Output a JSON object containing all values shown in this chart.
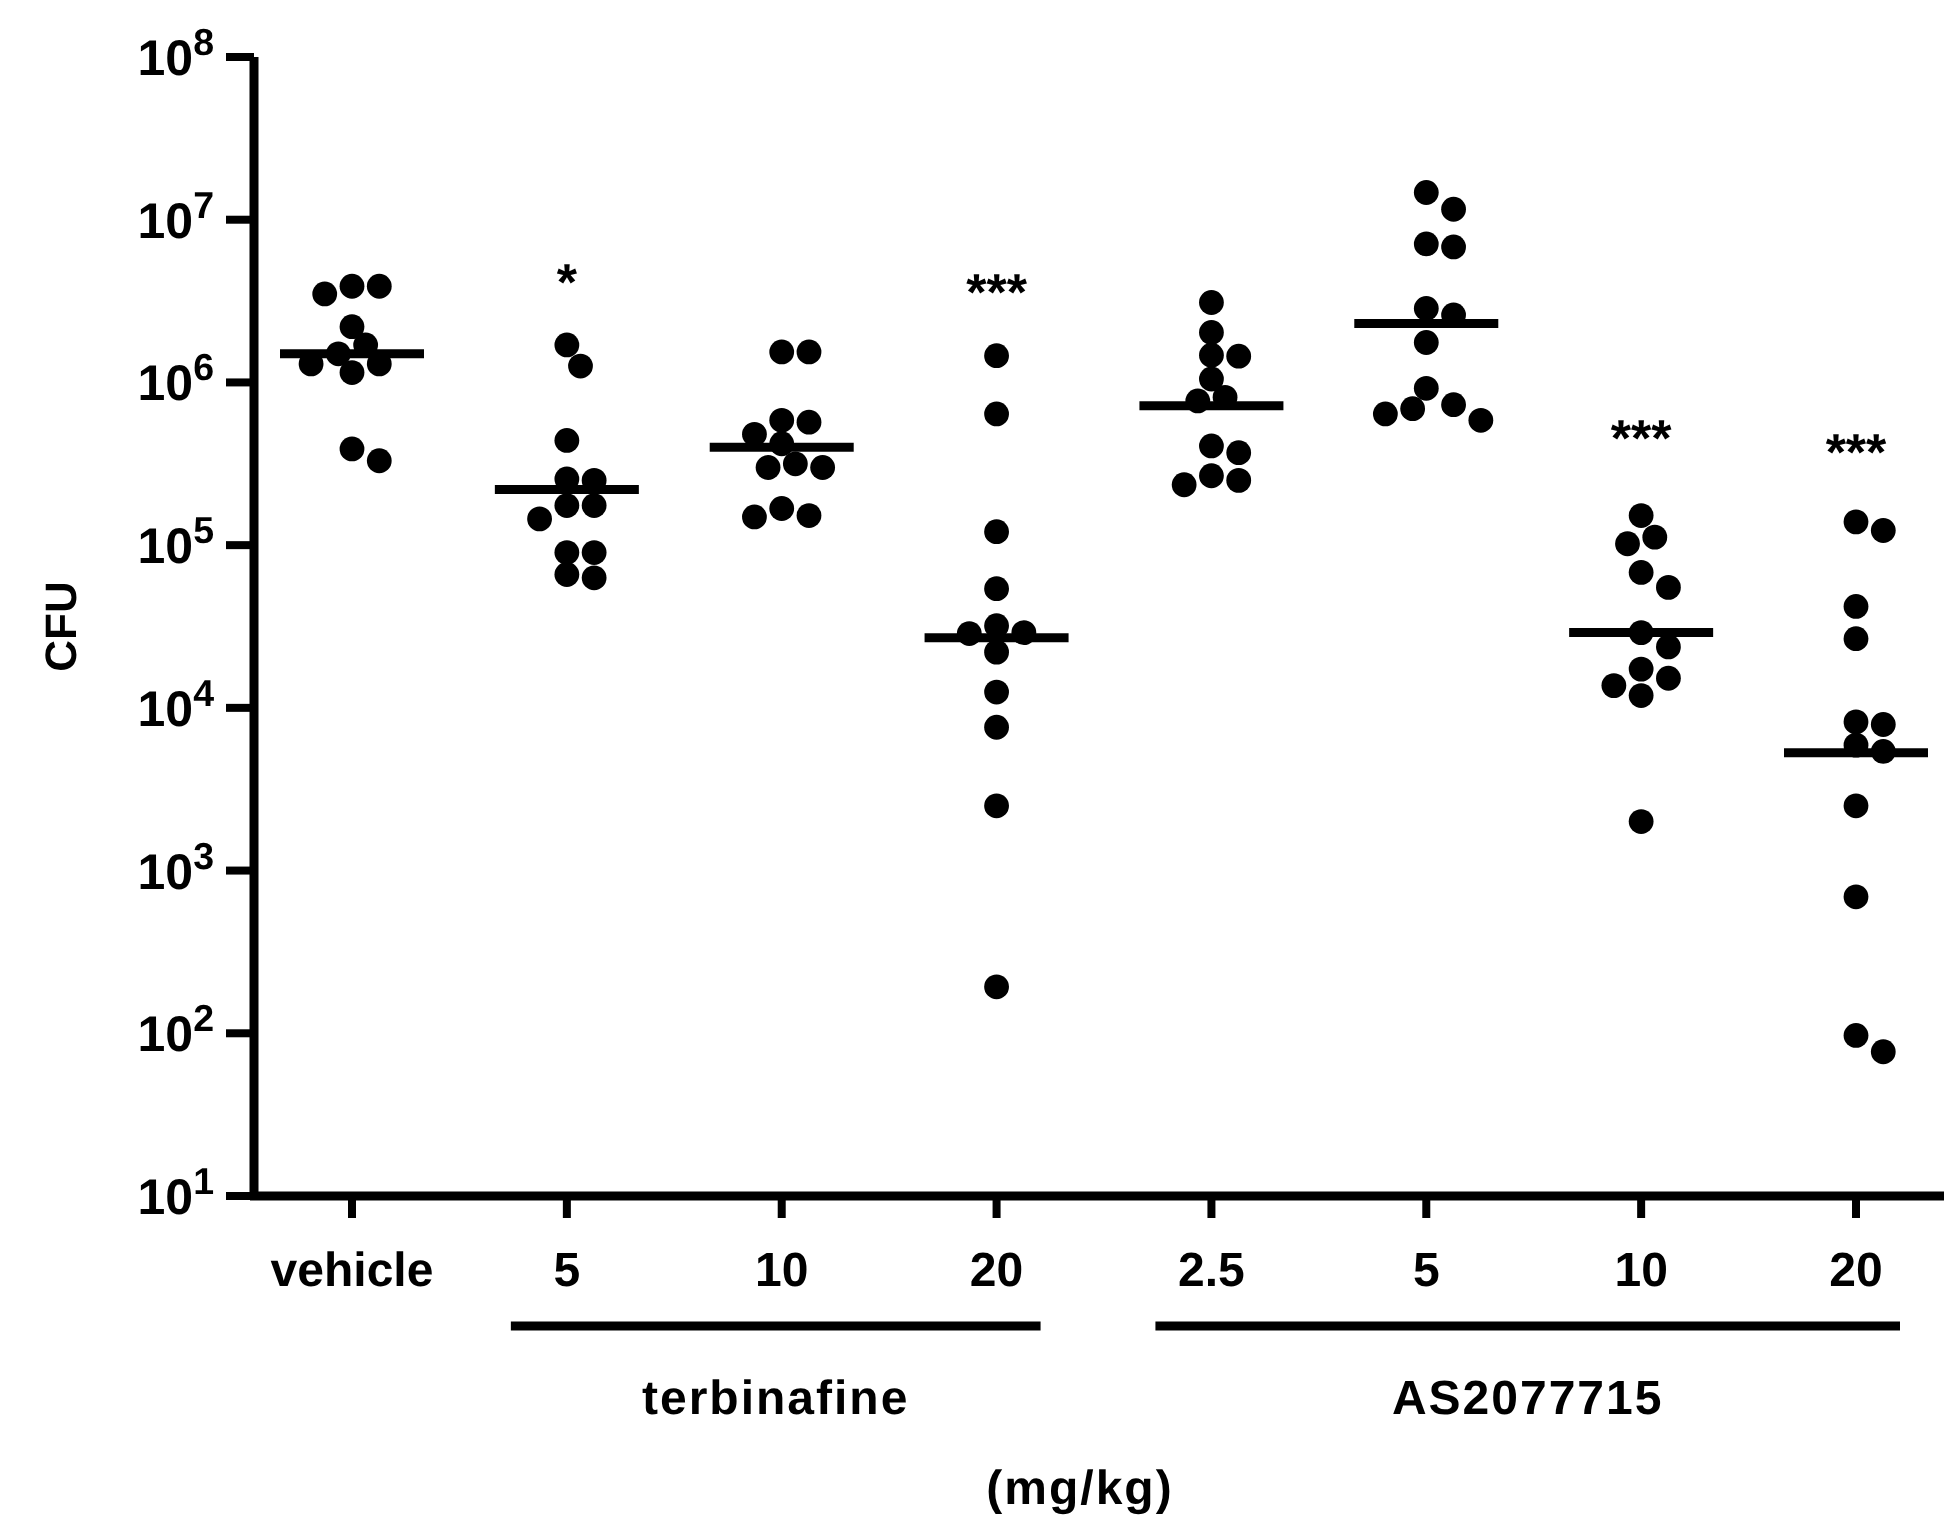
{
  "chart_data": {
    "type": "scatter",
    "ylabel": "CFU",
    "xlabel": "(mg/kg)",
    "categories": [
      "vehicle",
      "5",
      "10",
      "20",
      "2.5",
      "5",
      "10",
      "20"
    ],
    "log": "y",
    "ylim": [
      10,
      100000000
    ],
    "yticks": [
      {
        "value": 10,
        "label": "10$^{1}$"
      },
      {
        "value": 100,
        "label": "10$^{2}$"
      },
      {
        "value": 1000,
        "label": "10$^{3}$"
      },
      {
        "value": 10000,
        "label": "10$^{4}$"
      },
      {
        "value": 100000,
        "label": "10$^{5}$"
      },
      {
        "value": 1000000,
        "label": "10$^{6}$"
      },
      {
        "value": 10000000,
        "label": "10$^{7}$"
      },
      {
        "value": 100000000,
        "label": "10$^{8}$"
      }
    ],
    "marker": "circle",
    "annotations": [
      "*",
      "***",
      "***",
      "***",
      "terbinafine",
      "AS2077715"
    ],
    "series": [
      {
        "type": "box",
        "color": "#000000",
        "boxes": [
          {
            "low": 1500000,
            "q1": 1500000,
            "median": 1500000,
            "q3": 1500000,
            "high": 1500000
          },
          {
            "low": 220000,
            "q1": 220000,
            "median": 220000,
            "q3": 220000,
            "high": 220000
          },
          {
            "low": 400000,
            "q1": 400000,
            "median": 400000,
            "q3": 400000,
            "high": 400000
          },
          {
            "low": 27000,
            "q1": 27000,
            "median": 27000,
            "q3": 27000,
            "high": 27000
          },
          {
            "low": 720000,
            "q1": 720000,
            "median": 720000,
            "q3": 720000,
            "high": 720000
          },
          {
            "low": 2300000,
            "q1": 2300000,
            "median": 2300000,
            "q3": 2300000,
            "high": 2300000
          },
          {
            "low": 29000,
            "q1": 29000,
            "median": 29000,
            "q3": 29000,
            "high": 29000
          },
          {
            "low": 5300,
            "q1": 5300,
            "median": 5300,
            "q3": 5300,
            "high": 5300
          }
        ]
      },
      {
        "color": "#000000",
        "values": [
          3900000.0,
          1700000.0,
          1540000.0,
          1460000.0,
          3100000.0,
          14700000.0,
          152000.0,
          139000.0
        ]
      },
      {
        "color": "#000000",
        "values": [
          3900000.0,
          1260000.0,
          1540000.0,
          640000.0,
          2030000.0,
          11600000.0,
          102000.0,
          123000.0
        ]
      },
      {
        "color": "#000000",
        "values": [
          3500000.0,
          440000.0,
          570000.0,
          121000.0,
          1470000.0,
          6800000.0,
          112000.0,
          42000.0
        ]
      },
      {
        "color": "#000000",
        "values": [
          2200000.0,
          250000.0,
          585000.0,
          54000.0,
          1450000.0,
          7100000.0,
          68000.0,
          26600.0
        ]
      },
      {
        "color": "#000000",
        "values": [
          1500000.0,
          255000.0,
          420000.0,
          32000.0,
          1050000.0,
          2600000.0,
          55000.0,
          8200
        ]
      },
      {
        "color": "#000000",
        "values": [
          1700000.0,
          175000.0,
          480000.0,
          28600.0,
          770000.0,
          2850000.0,
          29000.0,
          7900
        ]
      },
      {
        "color": "#000000",
        "values": [
          1300000.0,
          175000.0,
          300000.0,
          29000.0,
          810000.0,
          1760000.0,
          23700.0,
          5900
        ]
      },
      {
        "color": "#000000",
        "values": [
          1150000.0,
          145000.0,
          300000.0,
          22000.0,
          407000.0,
          920000.0,
          17300.0,
          5400
        ]
      },
      {
        "color": "#000000",
        "values": [
          1300000.0,
          90000.0,
          316000.0,
          12500.0,
          370000.0,
          690000.0,
          13700.0,
          2500
        ]
      },
      {
        "color": "#000000",
        "values": [
          390000.0,
          90000.0,
          168000.0,
          7600,
          267000.0,
          585000.0,
          11900.0,
          690
        ]
      },
      {
        "color": "#000000",
        "values": [
          330000.0,
          63000.0,
          149000.0,
          2500,
          235000.0,
          640000.0,
          15200.0,
          77
        ]
      },
      {
        "color": "#000000",
        "values": [
          null,
          66000.0,
          152000.0,
          193,
          250000.0,
          730000.0,
          2000,
          97
        ]
      }
    ]
  }
}
